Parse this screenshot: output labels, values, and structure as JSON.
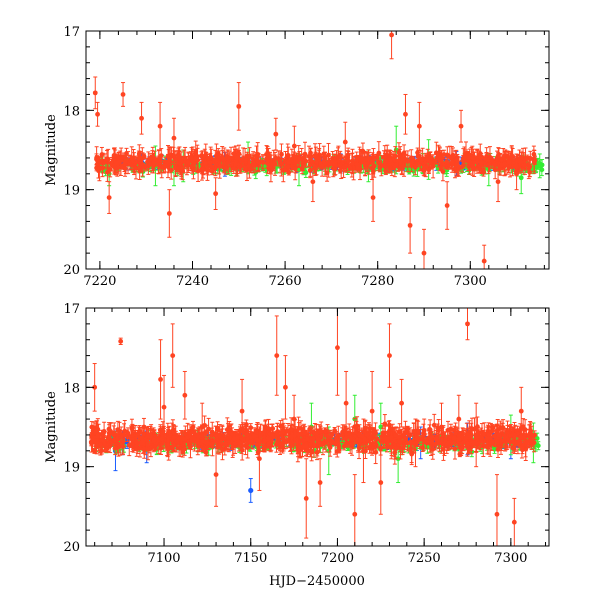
{
  "chart_data": [
    {
      "type": "scatter",
      "panel": "top",
      "title": "",
      "xlabel": "",
      "ylabel": "Magnitude",
      "xlim": [
        7217,
        7317
      ],
      "ylim": [
        20,
        17
      ],
      "y_inverted": true,
      "xticks": [
        7220,
        7240,
        7260,
        7280,
        7300
      ],
      "yticks": [
        17,
        18,
        19,
        20
      ],
      "reference_level": 18.68,
      "series": [
        {
          "name": "blue",
          "color": "#1a5cff",
          "dense_band": {
            "x": [
              7225,
              7312
            ],
            "center": 18.67,
            "halfwidth": 0.04
          },
          "points": [
            [
              7229,
              18.66,
              0.12
            ],
            [
              7243,
              18.67,
              0.05
            ],
            [
              7247,
              18.68,
              0.15
            ],
            [
              7256,
              18.66,
              0.06
            ],
            [
              7272,
              18.67,
              0.12
            ],
            [
              7280,
              18.68,
              0.05
            ],
            [
              7289,
              18.66,
              0.06
            ],
            [
              7297,
              18.67,
              0.15
            ],
            [
              7302,
              18.68,
              0.05
            ],
            [
              7312,
              18.66,
              0.05
            ]
          ]
        },
        {
          "name": "green",
          "color": "#33ee33",
          "dense_band": {
            "x": [
              7220,
              7316
            ],
            "center": 18.7,
            "halfwidth": 0.1
          },
          "points": [
            [
              7222,
              18.8,
              0.15
            ],
            [
              7232,
              18.7,
              0.25
            ],
            [
              7236,
              18.65,
              0.3
            ],
            [
              7238,
              18.7,
              0.2
            ],
            [
              7252,
              18.6,
              0.2
            ],
            [
              7263,
              18.75,
              0.2
            ],
            [
              7278,
              18.7,
              0.2
            ],
            [
              7284,
              18.5,
              0.3
            ],
            [
              7291,
              18.62,
              0.25
            ],
            [
              7304,
              18.75,
              0.2
            ],
            [
              7311,
              18.85,
              0.2
            ],
            [
              7315,
              18.7,
              0.15
            ]
          ]
        },
        {
          "name": "red",
          "color": "#ff4422",
          "dense_band": {
            "x": [
              7219,
              7314
            ],
            "center": 18.65,
            "halfwidth": 0.16
          },
          "points": [
            [
              7219,
              17.78,
              0.2
            ],
            [
              7219.5,
              18.05,
              0.15
            ],
            [
              7225,
              17.8,
              0.15
            ],
            [
              7229,
              18.1,
              0.2
            ],
            [
              7233,
              18.2,
              0.3
            ],
            [
              7236,
              18.35,
              0.25
            ],
            [
              7250,
              17.95,
              0.3
            ],
            [
              7258,
              18.3,
              0.2
            ],
            [
              7262,
              18.45,
              0.25
            ],
            [
              7266,
              18.9,
              0.25
            ],
            [
              7273,
              18.4,
              0.25
            ],
            [
              7279,
              19.1,
              0.3
            ],
            [
              7283,
              17.05,
              0.3
            ],
            [
              7286,
              18.05,
              0.25
            ],
            [
              7287,
              19.45,
              0.35
            ],
            [
              7289,
              18.2,
              0.3
            ],
            [
              7290,
              19.8,
              0.3
            ],
            [
              7295,
              19.2,
              0.3
            ],
            [
              7298,
              18.2,
              0.2
            ],
            [
              7303,
              19.9,
              0.2
            ],
            [
              7306,
              18.9,
              0.25
            ],
            [
              7310,
              18.8,
              0.2
            ],
            [
              7222,
              19.1,
              0.2
            ],
            [
              7235,
              19.3,
              0.3
            ],
            [
              7245,
              19.05,
              0.2
            ]
          ]
        }
      ]
    },
    {
      "type": "scatter",
      "panel": "bottom",
      "title": "",
      "xlabel": "HJD−2450000",
      "ylabel": "Magnitude",
      "xlim": [
        7055,
        7322
      ],
      "ylim": [
        20,
        17
      ],
      "y_inverted": true,
      "xticks": [
        7100,
        7150,
        7200,
        7250,
        7300
      ],
      "yticks": [
        17,
        18,
        19,
        20
      ],
      "reference_level": 18.68,
      "series": [
        {
          "name": "blue",
          "color": "#1a5cff",
          "dense_band": {
            "x": [
              7068,
              7312
            ],
            "center": 18.67,
            "halfwidth": 0.05
          },
          "points": [
            [
              7072,
              18.8,
              0.25
            ],
            [
              7076,
              18.7,
              0.15
            ],
            [
              7090,
              18.75,
              0.2
            ],
            [
              7150,
              19.3,
              0.15
            ],
            [
              7185,
              18.67,
              0.08
            ],
            [
              7242,
              18.68,
              0.1
            ],
            [
              7248,
              18.7,
              0.2
            ],
            [
              7275,
              18.65,
              0.2
            ],
            [
              7300,
              18.7,
              0.2
            ]
          ]
        },
        {
          "name": "green",
          "color": "#33ee33",
          "dense_band": {
            "x": [
              7058,
              7316
            ],
            "center": 18.7,
            "halfwidth": 0.12
          },
          "points": [
            [
              7185,
              18.5,
              0.3
            ],
            [
              7195,
              18.8,
              0.3
            ],
            [
              7210,
              18.4,
              0.3
            ],
            [
              7225,
              18.5,
              0.3
            ],
            [
              7235,
              18.9,
              0.3
            ],
            [
              7300,
              18.6,
              0.25
            ],
            [
              7313,
              18.7,
              0.25
            ]
          ]
        },
        {
          "name": "red",
          "color": "#ff4422",
          "dense_band": {
            "x": [
              7058,
              7314
            ],
            "center": 18.65,
            "halfwidth": 0.22
          },
          "points": [
            [
              7075,
              17.42,
              0.04
            ],
            [
              7060,
              18.0,
              0.3
            ],
            [
              7098,
              17.9,
              0.5
            ],
            [
              7100,
              18.25,
              0.4
            ],
            [
              7105,
              17.6,
              0.4
            ],
            [
              7112,
              18.1,
              0.3
            ],
            [
              7122,
              18.5,
              0.3
            ],
            [
              7145,
              18.3,
              0.4
            ],
            [
              7165,
              17.6,
              0.5
            ],
            [
              7170,
              18.0,
              0.4
            ],
            [
              7175,
              18.4,
              0.3
            ],
            [
              7182,
              19.4,
              0.5
            ],
            [
              7200,
              17.5,
              0.6
            ],
            [
              7205,
              18.2,
              0.4
            ],
            [
              7210,
              19.6,
              0.5
            ],
            [
              7215,
              18.8,
              0.4
            ],
            [
              7220,
              18.3,
              0.5
            ],
            [
              7225,
              19.2,
              0.4
            ],
            [
              7230,
              17.6,
              0.4
            ],
            [
              7237,
              18.2,
              0.3
            ],
            [
              7245,
              18.7,
              0.3
            ],
            [
              7260,
              18.5,
              0.3
            ],
            [
              7270,
              18.4,
              0.3
            ],
            [
              7275,
              17.2,
              0.2
            ],
            [
              7280,
              18.6,
              0.4
            ],
            [
              7292,
              19.6,
              0.5
            ],
            [
              7302,
              19.7,
              0.3
            ],
            [
              7306,
              18.3,
              0.3
            ],
            [
              7130,
              19.1,
              0.4
            ],
            [
              7155,
              18.9,
              0.4
            ],
            [
              7190,
              19.2,
              0.3
            ]
          ]
        }
      ]
    }
  ]
}
